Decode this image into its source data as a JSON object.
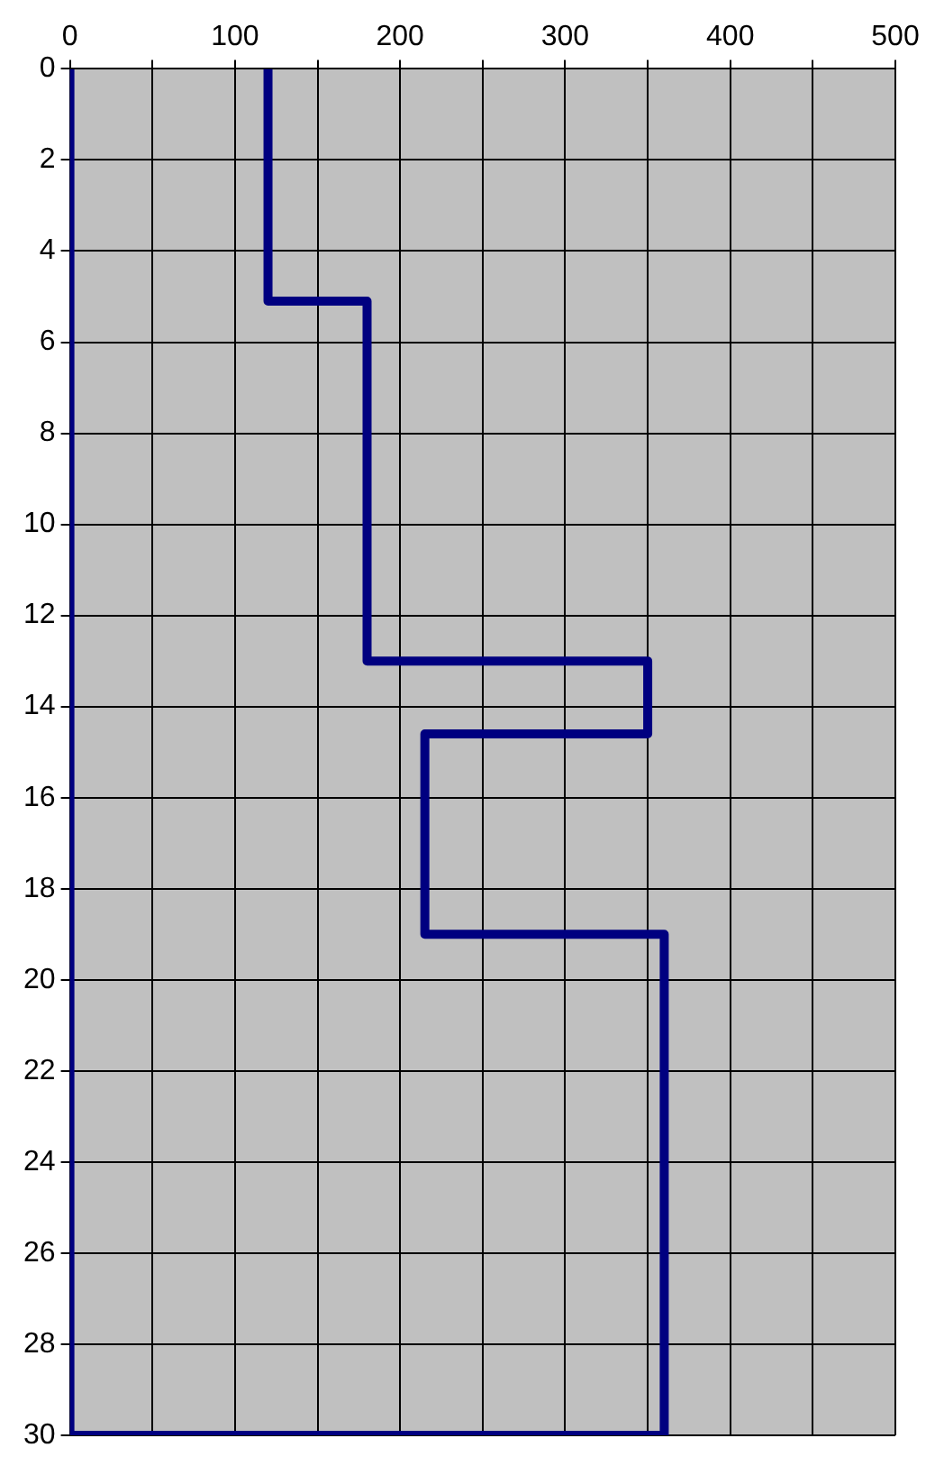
{
  "chart_data": {
    "type": "line",
    "x": [
      120,
      120,
      180,
      180,
      350,
      350,
      215,
      215,
      360,
      360,
      0,
      0
    ],
    "series": [
      {
        "color": "#000080",
        "values": [
          0,
          5.1,
          5.1,
          13,
          13,
          14.6,
          14.6,
          19,
          19,
          30,
          30,
          0
        ]
      }
    ],
    "xlim": [
      0,
      500
    ],
    "xticks": [
      0,
      {
        "value": 50,
        "label": null
      },
      100,
      {
        "value": 150,
        "label": null
      },
      200,
      {
        "value": 250,
        "label": null
      },
      300,
      {
        "value": 350,
        "label": null
      },
      400,
      {
        "value": 450,
        "label": null
      },
      500
    ],
    "ylim": [
      30,
      0
    ],
    "yticks": [
      0,
      2,
      4,
      6,
      8,
      10,
      12,
      14,
      16,
      18,
      20,
      22,
      24,
      26,
      28,
      30
    ],
    "grid": true,
    "legend": false,
    "marker": "none",
    "line_style": "solid"
  }
}
